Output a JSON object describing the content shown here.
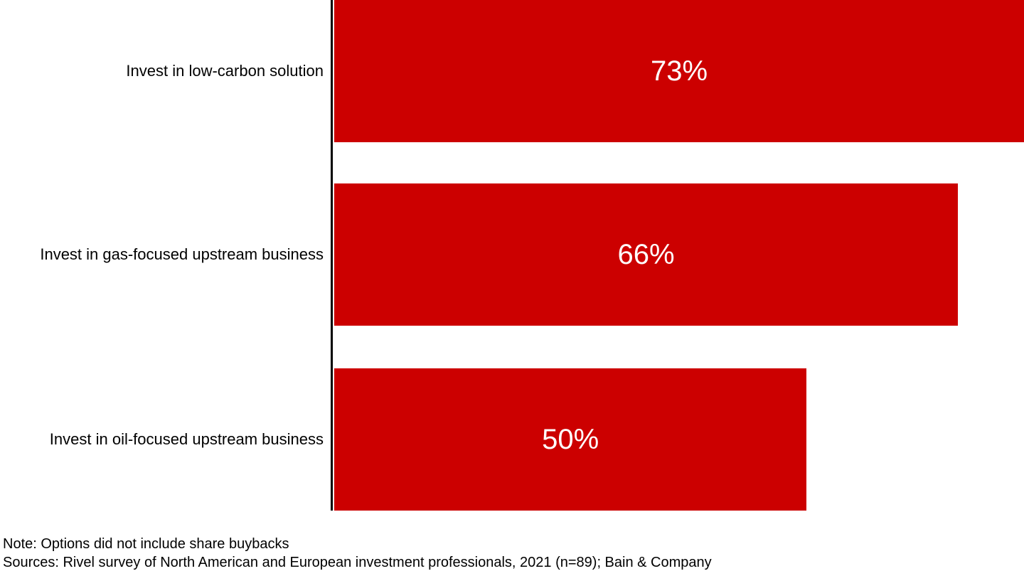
{
  "chart_data": {
    "type": "bar",
    "orientation": "horizontal",
    "title": "",
    "categories": [
      "Invest in low-carbon solution",
      "Invest in gas-focused upstream business",
      "Invest in oil-focused upstream business"
    ],
    "values": [
      73,
      66,
      50
    ],
    "value_labels": [
      "73%",
      "66%",
      "50%"
    ],
    "xlim": [
      0,
      73
    ],
    "xlabel": "",
    "ylabel": "",
    "grid": false,
    "legend": false,
    "bar_color": "#cc0000",
    "value_label_color": "#ffffff",
    "axis_color": "#000000"
  },
  "footer": {
    "note": "Note: Options did not include share buybacks",
    "sources": "Sources: Rivel survey of North American and European investment professionals, 2021 (n=89); Bain & Company"
  }
}
